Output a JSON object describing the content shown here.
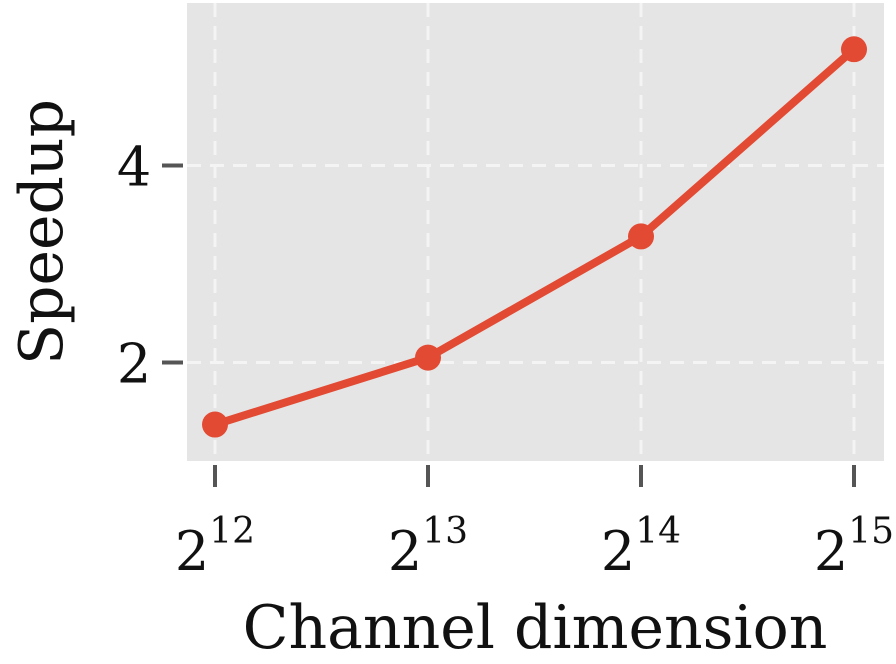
{
  "chart_data": {
    "type": "line",
    "title": "",
    "xlabel": "Channel dimension",
    "ylabel": "Speedup",
    "x": [
      {
        "base": "2",
        "exp": "12"
      },
      {
        "base": "2",
        "exp": "13"
      },
      {
        "base": "2",
        "exp": "14"
      },
      {
        "base": "2",
        "exp": "15"
      }
    ],
    "y_ticks": [
      2,
      4
    ],
    "ylim": [
      1.0,
      5.65
    ],
    "series": [
      {
        "values": [
          1.37,
          2.05,
          3.28,
          5.18
        ],
        "color": "#e24a33"
      }
    ],
    "grid": true,
    "panel_color": "#e5e5e5",
    "grid_color": "#f4f4f4"
  }
}
